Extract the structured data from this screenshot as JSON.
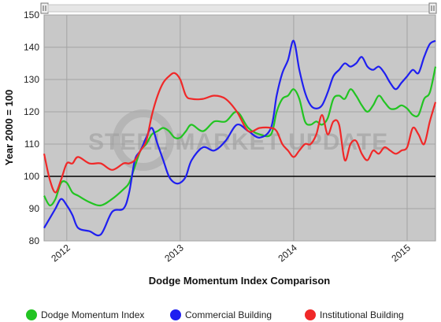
{
  "chart_data": {
    "type": "line",
    "title": "",
    "xlabel": "Dodge Momentum Index Comparison",
    "ylabel": "Year 2000 = 100",
    "ylim": [
      80,
      150
    ],
    "yticks": [
      80,
      90,
      100,
      110,
      120,
      130,
      140,
      150
    ],
    "xlim": [
      2011.8,
      2015.25
    ],
    "xticks": [
      {
        "x": 2012.0,
        "label": "2012"
      },
      {
        "x": 2013.0,
        "label": "2013"
      },
      {
        "x": 2014.0,
        "label": "2014"
      },
      {
        "x": 2015.0,
        "label": "2015"
      }
    ],
    "reference_line": 100,
    "grid": true,
    "legend_position": "bottom",
    "watermark": "STEEL MARKET UPDATE",
    "series": [
      {
        "name": "Dodge Momentum Index",
        "color": "#22c422",
        "x": [
          2011.8,
          2011.85,
          2011.9,
          2011.95,
          2012.0,
          2012.05,
          2012.1,
          2012.2,
          2012.3,
          2012.4,
          2012.5,
          2012.55,
          2012.6,
          2012.65,
          2012.7,
          2012.75,
          2012.8,
          2012.85,
          2012.9,
          2012.95,
          2013.0,
          2013.05,
          2013.1,
          2013.2,
          2013.3,
          2013.4,
          2013.5,
          2013.6,
          2013.7,
          2013.8,
          2013.85,
          2013.9,
          2013.95,
          2014.0,
          2014.05,
          2014.1,
          2014.15,
          2014.2,
          2014.25,
          2014.3,
          2014.35,
          2014.4,
          2014.45,
          2014.5,
          2014.55,
          2014.6,
          2014.65,
          2014.7,
          2014.75,
          2014.8,
          2014.85,
          2014.9,
          2014.95,
          2015.0,
          2015.05,
          2015.1,
          2015.15,
          2015.2,
          2015.25
        ],
        "y": [
          94,
          91,
          93,
          98,
          98,
          95,
          94,
          92,
          91,
          93,
          96,
          98,
          103,
          108,
          110,
          113,
          114,
          115,
          114,
          112,
          112,
          114,
          116,
          114,
          117,
          117,
          120,
          115,
          113,
          113,
          120,
          124,
          125,
          127,
          124,
          117,
          116,
          117,
          116,
          118,
          124,
          125,
          124,
          127,
          125,
          122,
          120,
          122,
          125,
          123,
          121,
          121,
          122,
          121,
          119,
          119,
          124,
          126,
          134
        ]
      },
      {
        "name": "Commercial Building",
        "color": "#1f1ff0",
        "x": [
          2011.8,
          2011.85,
          2011.9,
          2011.95,
          2012.0,
          2012.05,
          2012.1,
          2012.2,
          2012.3,
          2012.4,
          2012.5,
          2012.55,
          2012.6,
          2012.65,
          2012.7,
          2012.75,
          2012.8,
          2012.85,
          2012.9,
          2012.95,
          2013.0,
          2013.05,
          2013.1,
          2013.2,
          2013.3,
          2013.4,
          2013.5,
          2013.6,
          2013.7,
          2013.8,
          2013.85,
          2013.9,
          2013.95,
          2014.0,
          2014.05,
          2014.1,
          2014.15,
          2014.2,
          2014.25,
          2014.3,
          2014.35,
          2014.4,
          2014.45,
          2014.5,
          2014.55,
          2014.6,
          2014.65,
          2014.7,
          2014.75,
          2014.8,
          2014.85,
          2014.9,
          2014.95,
          2015.0,
          2015.05,
          2015.1,
          2015.15,
          2015.2,
          2015.25
        ],
        "y": [
          84,
          87,
          90,
          93,
          91,
          88,
          84,
          83,
          82,
          89,
          90,
          95,
          105,
          108,
          112,
          115,
          110,
          105,
          100,
          98,
          98,
          100,
          105,
          109,
          108,
          111,
          116,
          114,
          112,
          115,
          125,
          132,
          136,
          142,
          133,
          126,
          122,
          121,
          122,
          126,
          131,
          133,
          135,
          134,
          135,
          137,
          134,
          133,
          134,
          132,
          129,
          127,
          129,
          131,
          133,
          132,
          137,
          141,
          142
        ]
      },
      {
        "name": "Institutional Building",
        "color": "#f02828",
        "x": [
          2011.8,
          2011.85,
          2011.9,
          2011.95,
          2012.0,
          2012.05,
          2012.1,
          2012.2,
          2012.3,
          2012.4,
          2012.5,
          2012.55,
          2012.6,
          2012.65,
          2012.7,
          2012.75,
          2012.8,
          2012.85,
          2012.9,
          2012.95,
          2013.0,
          2013.05,
          2013.1,
          2013.2,
          2013.3,
          2013.4,
          2013.5,
          2013.6,
          2013.7,
          2013.8,
          2013.85,
          2013.9,
          2013.95,
          2014.0,
          2014.05,
          2014.1,
          2014.15,
          2014.2,
          2014.25,
          2014.3,
          2014.35,
          2014.4,
          2014.45,
          2014.5,
          2014.55,
          2014.6,
          2014.65,
          2014.7,
          2014.75,
          2014.8,
          2014.85,
          2014.9,
          2014.95,
          2015.0,
          2015.05,
          2015.1,
          2015.15,
          2015.2,
          2015.25
        ],
        "y": [
          107,
          99,
          95,
          99,
          104,
          104,
          106,
          104,
          104,
          102,
          104,
          104,
          105,
          108,
          111,
          119,
          125,
          129,
          131,
          132,
          130,
          125,
          124,
          124,
          125,
          124,
          120,
          114,
          115,
          115,
          114,
          110,
          108,
          106,
          108,
          110,
          110,
          113,
          119,
          113,
          117,
          116,
          105,
          110,
          111,
          107,
          105,
          108,
          107,
          109,
          108,
          107,
          108,
          109,
          115,
          113,
          110,
          117,
          123
        ]
      }
    ]
  }
}
